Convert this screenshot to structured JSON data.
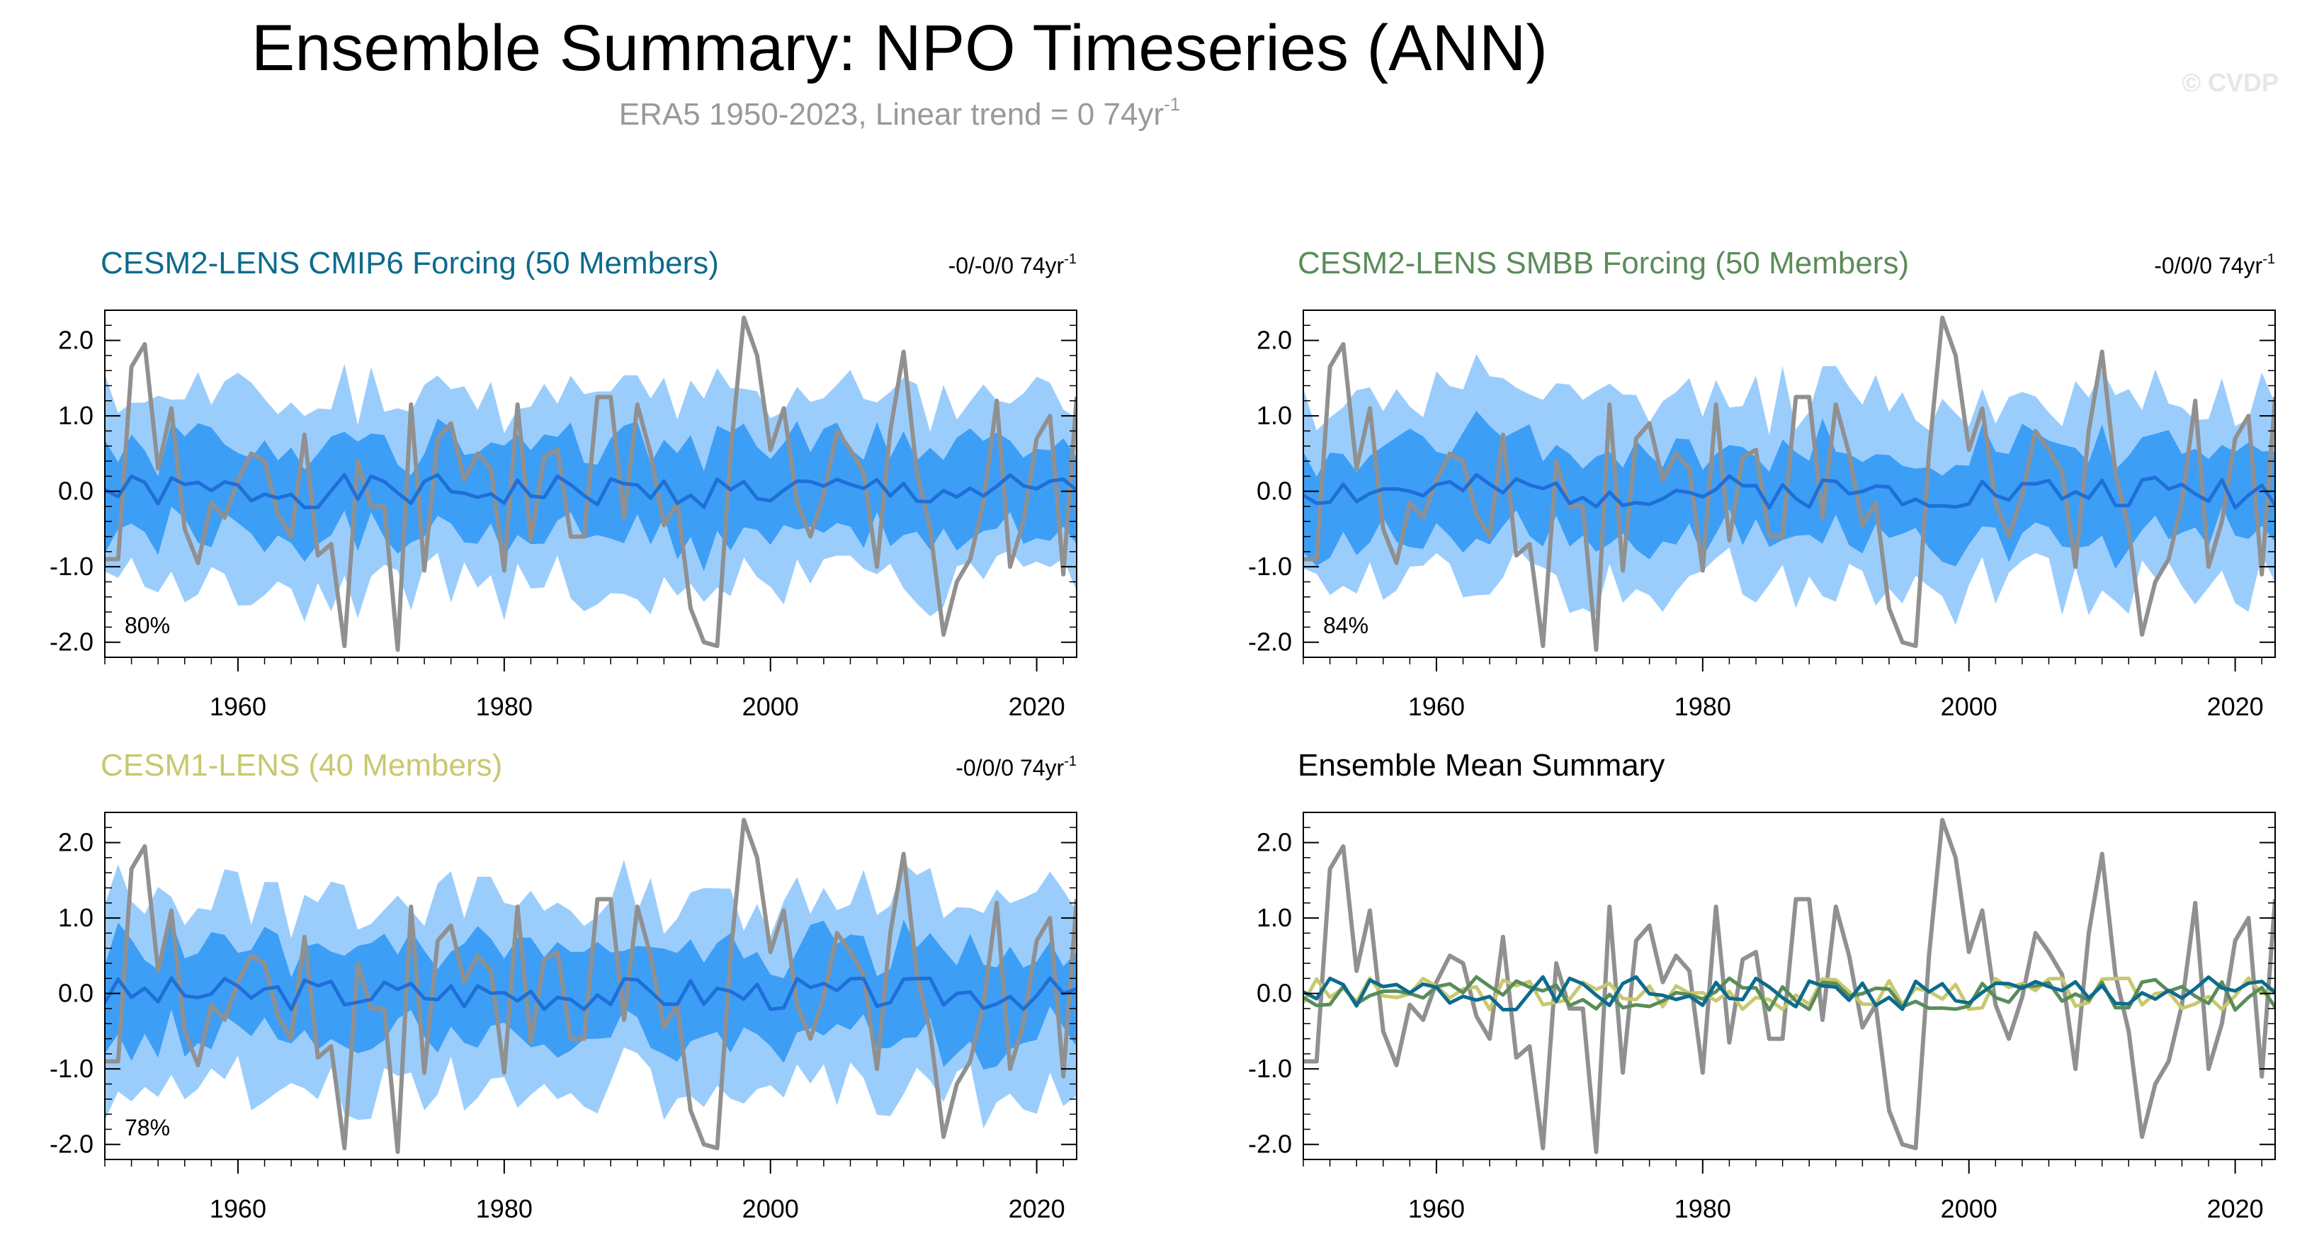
{
  "title": "Ensemble Summary: NPO Timeseries (ANN)",
  "subtitle": {
    "text": "ERA5 1950-2023, Linear trend = 0 74yr",
    "superscript": "-1"
  },
  "copyright": "© CVDP",
  "colors": {
    "obs": "#909090",
    "outer_band": "#9bcdfc",
    "inner_band": "#3d9ef6",
    "ens_mean": "#1f6fd8",
    "cesm2_cmip6": "#0d6b8c",
    "cesm2_smbb": "#5a8c5a",
    "cesm1": "#c8c86e"
  },
  "chart_data": [
    {
      "id": "cesm2-cmip6",
      "type": "line",
      "title": "CESM2-LENS CMIP6 Forcing (50 Members)",
      "title_color": "#0d6b8c",
      "trend_label": "-0/-0/0 74yr",
      "trend_sup": "-1",
      "pct_label": "80%",
      "xlim": [
        1950,
        2023
      ],
      "ylim": [
        -2.2,
        2.4
      ],
      "xticks": [
        "1960",
        "1980",
        "2000",
        "2020"
      ],
      "yticks": [
        "2.0",
        "1.0",
        "0.0",
        "-1.0",
        "-2.0"
      ],
      "series_seed": 1
    },
    {
      "id": "cesm2-smbb",
      "type": "line",
      "title": "CESM2-LENS SMBB Forcing (50 Members)",
      "title_color": "#5a8c5a",
      "trend_label": "-0/0/0 74yr",
      "trend_sup": "-1",
      "pct_label": "84%",
      "xlim": [
        1950,
        2023
      ],
      "ylim": [
        -2.2,
        2.4
      ],
      "xticks": [
        "1960",
        "1980",
        "2000",
        "2020"
      ],
      "yticks": [
        "2.0",
        "1.0",
        "0.0",
        "-1.0",
        "-2.0"
      ],
      "series_seed": 2
    },
    {
      "id": "cesm1",
      "type": "line",
      "title": "CESM1-LENS (40 Members)",
      "title_color": "#c8c86e",
      "trend_label": "-0/0/0 74yr",
      "trend_sup": "-1",
      "pct_label": "78%",
      "xlim": [
        1950,
        2023
      ],
      "ylim": [
        -2.2,
        2.4
      ],
      "xticks": [
        "1960",
        "1980",
        "2000",
        "2020"
      ],
      "yticks": [
        "2.0",
        "1.0",
        "0.0",
        "-1.0",
        "-2.0"
      ],
      "series_seed": 3
    },
    {
      "id": "ens-mean",
      "type": "line",
      "title": "Ensemble Mean Summary",
      "title_color": "#000000",
      "xlim": [
        1950,
        2023
      ],
      "ylim": [
        -2.2,
        2.4
      ],
      "xticks": [
        "1960",
        "1980",
        "2000",
        "2020"
      ],
      "yticks": [
        "2.0",
        "1.0",
        "0.0",
        "-1.0",
        "-2.0"
      ]
    }
  ],
  "obs_series": {
    "name": "ERA5 NPO",
    "years_start": 1950,
    "values": [
      -0.9,
      -0.9,
      1.65,
      1.95,
      0.3,
      1.1,
      -0.5,
      -0.95,
      -0.15,
      -0.35,
      0.15,
      0.5,
      0.4,
      -0.3,
      -0.6,
      0.75,
      -0.85,
      -0.7,
      -2.05,
      0.4,
      -0.2,
      -0.2,
      -2.1,
      1.15,
      -1.05,
      0.7,
      0.9,
      0.15,
      0.5,
      0.3,
      -1.05,
      1.15,
      -0.65,
      0.45,
      0.55,
      -0.6,
      -0.6,
      1.25,
      1.25,
      -0.35,
      1.15,
      0.5,
      -0.45,
      -0.15,
      -1.55,
      -2.0,
      -2.05,
      0.5,
      2.3,
      1.8,
      0.55,
      1.1,
      -0.15,
      -0.6,
      -0.05,
      0.8,
      0.55,
      0.25,
      -1.0,
      0.8,
      1.85,
      0.25,
      -0.5,
      -1.9,
      -1.2,
      -0.9,
      -0.15,
      1.2,
      -1.0,
      -0.4,
      0.7,
      1.0,
      -1.1,
      1.25
    ]
  }
}
